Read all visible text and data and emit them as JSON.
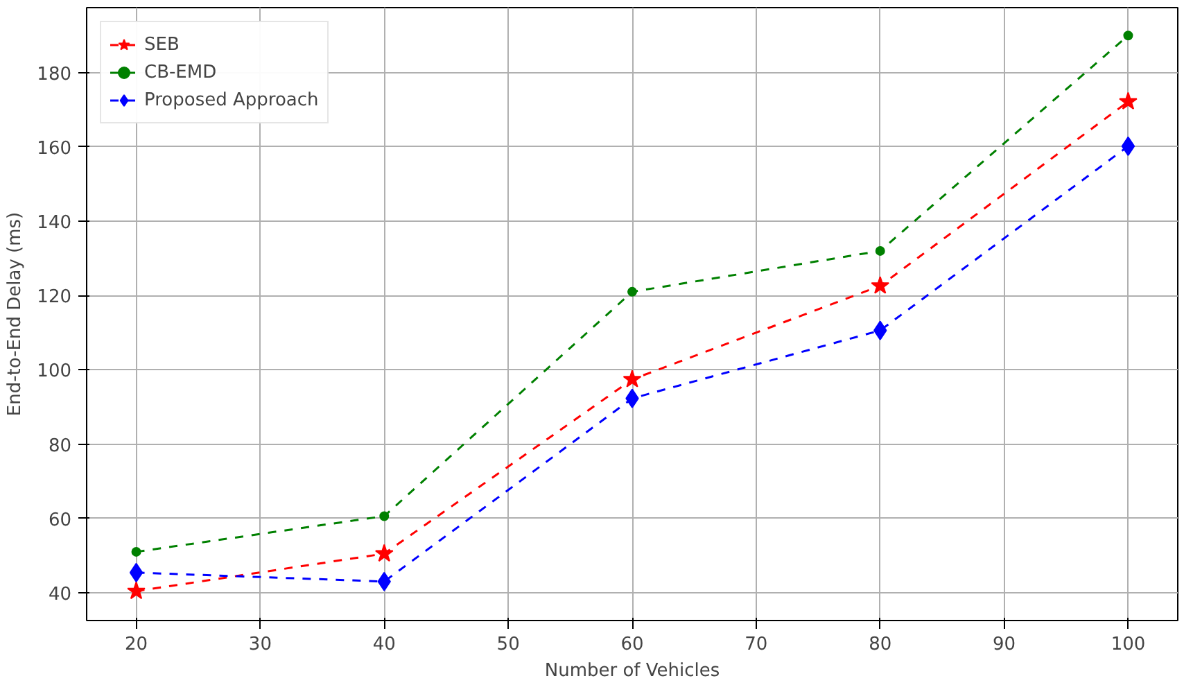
{
  "chart_data": {
    "type": "line",
    "xlabel": "Number of Vehicles",
    "ylabel": "End-to-End Delay (ms)",
    "x": [
      20,
      40,
      60,
      80,
      100
    ],
    "series": [
      {
        "name": "SEB",
        "color": "#ff0000",
        "values": [
          40.4,
          50.5,
          97.4,
          122.6,
          172.2
        ],
        "marker": "star"
      },
      {
        "name": "CB-EMD",
        "color": "#008000",
        "values": [
          51,
          60.6,
          121,
          132,
          190
        ],
        "marker": "circle"
      },
      {
        "name": "Proposed Approach",
        "color": "#0000ff",
        "values": [
          45.4,
          43,
          92.3,
          110.6,
          160.2
        ],
        "marker": "diamond"
      }
    ],
    "xlim": [
      16,
      104
    ],
    "ylim": [
      32.5,
      197.5
    ],
    "xticks": [
      20,
      30,
      40,
      50,
      60,
      70,
      80,
      90,
      100
    ],
    "yticks": [
      40,
      60,
      80,
      100,
      120,
      140,
      160,
      180
    ],
    "grid": true,
    "legend": "top left",
    "line_style": "dashed"
  }
}
